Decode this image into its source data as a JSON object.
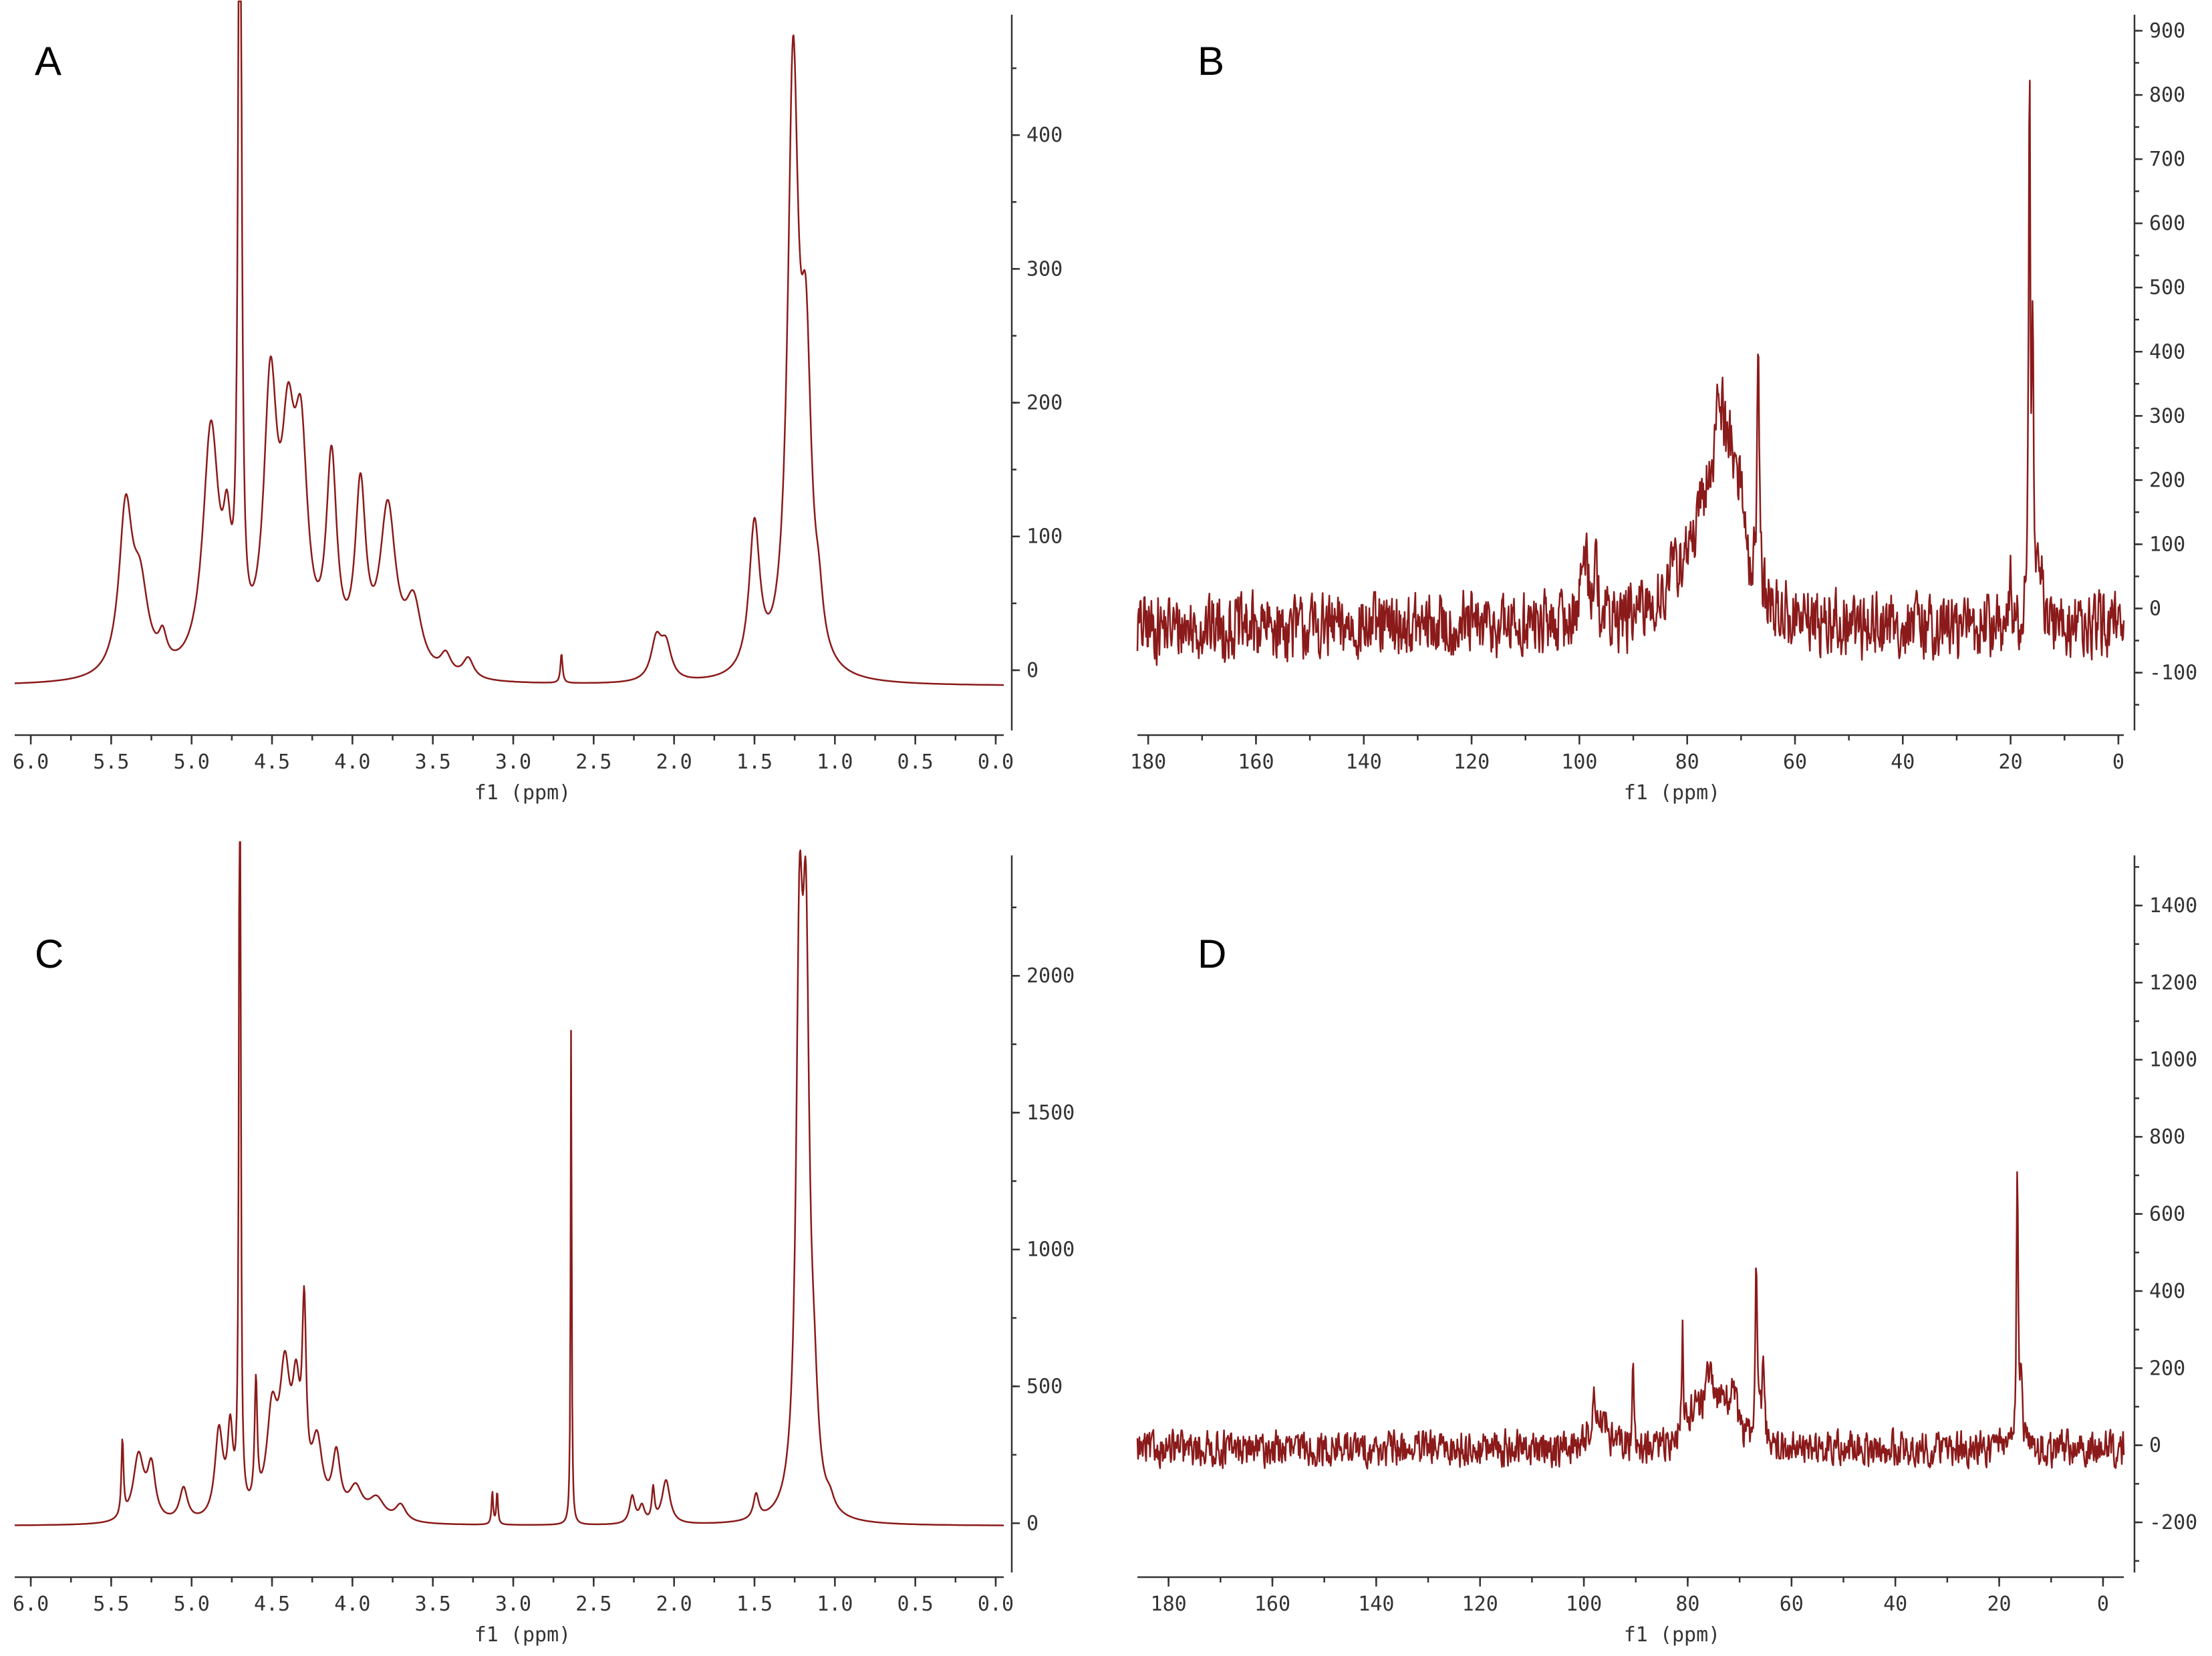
{
  "colors": {
    "trace": "#8b1a1a",
    "axis": "#333333",
    "background": "#ffffff"
  },
  "chart_data": [
    {
      "panel": "A",
      "type": "line",
      "xlabel": "f1 (ppm)",
      "xlim": [
        6.1,
        -0.05
      ],
      "ylim": [
        -45,
        490
      ],
      "xticks": [
        "6.0",
        "5.5",
        "5.0",
        "4.5",
        "4.0",
        "3.5",
        "3.0",
        "2.5",
        "2.0",
        "1.5",
        "1.0",
        "0.5",
        "0.0"
      ],
      "yticks": [
        "0",
        "100",
        "200",
        "300",
        "400"
      ],
      "baseline": -12,
      "noise": 0,
      "peaks": [
        [
          5.41,
          120,
          0.05
        ],
        [
          5.32,
          60,
          0.06
        ],
        [
          5.18,
          20,
          0.03
        ],
        [
          4.88,
          180,
          0.06
        ],
        [
          4.78,
          70,
          0.03
        ],
        [
          4.7,
          700,
          0.012
        ],
        [
          4.51,
          200,
          0.05
        ],
        [
          4.4,
          140,
          0.05
        ],
        [
          4.32,
          150,
          0.05
        ],
        [
          4.13,
          150,
          0.04
        ],
        [
          3.95,
          130,
          0.04
        ],
        [
          3.78,
          120,
          0.06
        ],
        [
          3.62,
          50,
          0.06
        ],
        [
          3.42,
          15,
          0.04
        ],
        [
          3.28,
          15,
          0.04
        ],
        [
          2.7,
          22,
          0.008
        ],
        [
          2.11,
          30,
          0.04
        ],
        [
          2.05,
          25,
          0.04
        ],
        [
          1.5,
          110,
          0.04
        ],
        [
          1.26,
          440,
          0.04
        ],
        [
          1.18,
          210,
          0.04
        ],
        [
          1.1,
          30,
          0.03
        ]
      ]
    },
    {
      "panel": "B",
      "type": "line",
      "xlabel": "f1 (ppm)",
      "xlim": [
        182,
        -1
      ],
      "ylim": [
        -190,
        925
      ],
      "xticks": [
        "180",
        "160",
        "140",
        "120",
        "100",
        "80",
        "60",
        "40",
        "20",
        "0"
      ],
      "yticks": [
        "-100",
        "0",
        "100",
        "200",
        "300",
        "400",
        "500",
        "600",
        "700",
        "800",
        "900"
      ],
      "baseline": -30,
      "noise": 45,
      "peaks": [
        [
          99,
          110,
          0.8
        ],
        [
          97,
          70,
          0.6
        ],
        [
          82,
          40,
          3
        ],
        [
          76,
          160,
          4
        ],
        [
          74,
          180,
          1.2
        ],
        [
          72,
          140,
          1.2
        ],
        [
          70,
          120,
          1.2
        ],
        [
          66.8,
          400,
          0.25
        ],
        [
          16.5,
          870,
          0.18
        ],
        [
          15.9,
          470,
          0.2
        ],
        [
          14.5,
          100,
          0.4
        ],
        [
          20,
          60,
          0.2
        ]
      ]
    },
    {
      "panel": "C",
      "type": "line",
      "xlabel": "f1 (ppm)",
      "xlim": [
        6.1,
        -0.05
      ],
      "ylim": [
        -180,
        2440
      ],
      "xticks": [
        "6.0",
        "5.5",
        "5.0",
        "4.5",
        "4.0",
        "3.5",
        "3.0",
        "2.5",
        "2.0",
        "1.5",
        "1.0",
        "0.5",
        "0.0"
      ],
      "yticks": [
        "0",
        "500",
        "1000",
        "1500",
        "2000"
      ],
      "baseline": -10,
      "noise": 0,
      "peaks": [
        [
          5.43,
          280,
          0.008
        ],
        [
          5.33,
          240,
          0.04
        ],
        [
          5.25,
          190,
          0.03
        ],
        [
          5.05,
          120,
          0.03
        ],
        [
          4.83,
          320,
          0.03
        ],
        [
          4.76,
          300,
          0.02
        ],
        [
          4.7,
          3500,
          0.006
        ],
        [
          4.6,
          450,
          0.01
        ],
        [
          4.5,
          350,
          0.04
        ],
        [
          4.42,
          480,
          0.04
        ],
        [
          4.35,
          380,
          0.03
        ],
        [
          4.3,
          650,
          0.015
        ],
        [
          4.22,
          260,
          0.04
        ],
        [
          4.1,
          220,
          0.03
        ],
        [
          3.98,
          110,
          0.05
        ],
        [
          3.85,
          80,
          0.06
        ],
        [
          3.7,
          60,
          0.04
        ],
        [
          3.13,
          120,
          0.006
        ],
        [
          3.1,
          120,
          0.006
        ],
        [
          2.64,
          1850,
          0.004
        ],
        [
          2.26,
          100,
          0.02
        ],
        [
          2.2,
          60,
          0.02
        ],
        [
          2.13,
          120,
          0.01
        ],
        [
          2.05,
          160,
          0.03
        ],
        [
          1.49,
          90,
          0.02
        ],
        [
          1.22,
          1900,
          0.025
        ],
        [
          1.18,
          1800,
          0.025
        ],
        [
          1.13,
          300,
          0.03
        ],
        [
          1.03,
          40,
          0.03
        ]
      ]
    },
    {
      "panel": "D",
      "type": "line",
      "xlabel": "f1 (ppm)",
      "xlim": [
        186,
        -4
      ],
      "ylim": [
        -330,
        1530
      ],
      "xticks": [
        "180",
        "160",
        "140",
        "120",
        "100",
        "80",
        "60",
        "40",
        "20",
        "0"
      ],
      "yticks": [
        "-200",
        "0",
        "200",
        "400",
        "600",
        "800",
        "1000",
        "1200",
        "1400"
      ],
      "baseline": -10,
      "noise": 40,
      "peaks": [
        [
          98,
          120,
          0.8
        ],
        [
          96,
          60,
          0.8
        ],
        [
          90.5,
          240,
          0.15
        ],
        [
          81,
          300,
          0.2
        ],
        [
          79,
          80,
          1
        ],
        [
          76,
          150,
          1.5
        ],
        [
          73,
          100,
          1.5
        ],
        [
          71,
          90,
          1
        ],
        [
          66.8,
          470,
          0.25
        ],
        [
          65.5,
          250,
          0.25
        ],
        [
          16.5,
          760,
          0.2
        ],
        [
          15.8,
          150,
          0.3
        ]
      ]
    }
  ]
}
